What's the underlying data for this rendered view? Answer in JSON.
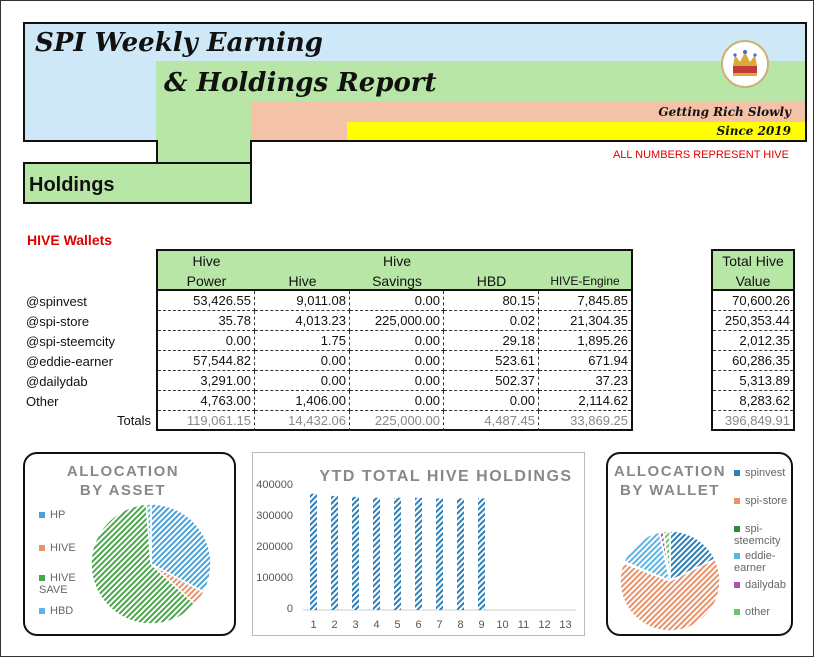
{
  "header": {
    "title_line1": "SPI Weekly Earning",
    "title_line2": "& Holdings Report",
    "tagline": "Getting Rich Slowly",
    "since": "Since 2019",
    "note": "ALL NUMBERS REPRESENT HIVE",
    "section_title": "Holdings",
    "logo_icon": "crown-icon"
  },
  "wallets": {
    "label": "HIVE Wallets",
    "columns": [
      "Hive Power",
      "Hive",
      "Hive Savings",
      "HBD",
      "HIVE-Engine"
    ],
    "total_column": "Total Hive Value",
    "rows": [
      {
        "name": "@spinvest",
        "values": [
          "53,426.55",
          "9,011.08",
          "0.00",
          "80.15",
          "7,845.85"
        ],
        "total": "70,600.26"
      },
      {
        "name": "@spi-store",
        "values": [
          "35.78",
          "4,013.23",
          "225,000.00",
          "0.02",
          "21,304.35"
        ],
        "total": "250,353.44"
      },
      {
        "name": "@spi-steemcity",
        "values": [
          "0.00",
          "1.75",
          "0.00",
          "29.18",
          "1,895.26"
        ],
        "total": "2,012.35"
      },
      {
        "name": "@eddie-earner",
        "values": [
          "57,544.82",
          "0.00",
          "0.00",
          "523.61",
          "671.94"
        ],
        "total": "60,286.35"
      },
      {
        "name": "@dailydab",
        "values": [
          "3,291.00",
          "0.00",
          "0.00",
          "502.37",
          "37.23"
        ],
        "total": "5,313.89"
      },
      {
        "name": "Other",
        "values": [
          "4,763.00",
          "1,406.00",
          "0.00",
          "0.00",
          "2,114.62"
        ],
        "total": "8,283.62"
      }
    ],
    "totals_label": "Totals",
    "totals": [
      "119,061.15",
      "14,432.06",
      "225,000.00",
      "4,487.45",
      "33,869.25"
    ],
    "grand_total": "396,849.91"
  },
  "chart_data": [
    {
      "type": "pie",
      "title": "ALLOCATION BY ASSET",
      "categories": [
        "HP",
        "HIVE",
        "HIVE SAVE",
        "HBD"
      ],
      "values": [
        119061.15,
        14432.06,
        225000.0,
        4487.45
      ],
      "colors": [
        "#4aa3d8",
        "#e8936a",
        "#4ca64c",
        "#5ab4e6"
      ],
      "legend": "left"
    },
    {
      "type": "bar",
      "title": "YTD TOTAL HIVE HOLDINGS",
      "categories": [
        "1",
        "2",
        "3",
        "4",
        "5",
        "6",
        "7",
        "8",
        "9",
        "10",
        "11",
        "12",
        "13"
      ],
      "values": [
        375000,
        368000,
        365000,
        362000,
        362000,
        362000,
        360000,
        360000,
        360000,
        0,
        0,
        0,
        0
      ],
      "ylim": [
        0,
        400000
      ],
      "yticks": [
        "0",
        "100000",
        "200000",
        "300000",
        "400000"
      ],
      "color": "#2d7fb8"
    },
    {
      "type": "pie",
      "title": "ALLOCATION BY WALLET",
      "categories": [
        "spinvest",
        "spi-store",
        "spi-steemcity",
        "eddie-earner",
        "dailydab",
        "other"
      ],
      "values": [
        70600.26,
        250353.44,
        2012.35,
        60286.35,
        5313.89,
        8283.62
      ],
      "colors": [
        "#2d7fb8",
        "#e8936a",
        "#2f8a3a",
        "#5ab4e6",
        "#b04fb0",
        "#6cc46c"
      ],
      "legend": "right"
    }
  ]
}
